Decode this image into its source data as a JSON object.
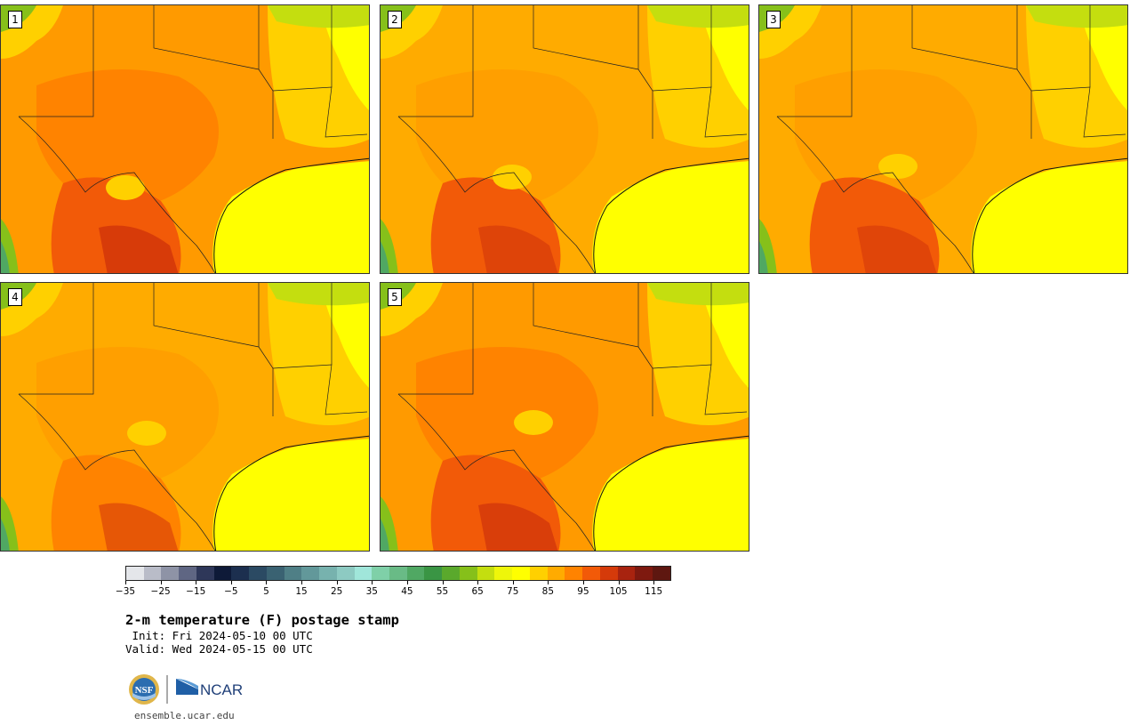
{
  "panels": [
    {
      "label": "1",
      "warmth": 0.95
    },
    {
      "label": "2",
      "warmth": 0.7
    },
    {
      "label": "3",
      "warmth": 0.65
    },
    {
      "label": "4",
      "warmth": 0.6
    },
    {
      "label": "5",
      "warmth": 0.85
    }
  ],
  "colorbar": {
    "colors": [
      "#e4e6ea",
      "#b9bcc8",
      "#8e93a6",
      "#5f6683",
      "#2e3759",
      "#0e1a38",
      "#1c2f4f",
      "#2b4a63",
      "#3a6272",
      "#4f7f86",
      "#62989a",
      "#77b2ae",
      "#8dcac2",
      "#a0e6da",
      "#7fd0a8",
      "#69bb86",
      "#50a863",
      "#3a9544",
      "#5aa92c",
      "#86c01a",
      "#c4de0f",
      "#eef60a",
      "#ffff00",
      "#ffd000",
      "#ffab00",
      "#ff8300",
      "#f25a08",
      "#d53a0a",
      "#a8230f",
      "#7e190f",
      "#5e1710"
    ],
    "tick_labels": [
      "−35",
      "−25",
      "−15",
      "−5",
      "5",
      "15",
      "25",
      "35",
      "45",
      "55",
      "65",
      "75",
      "85",
      "95",
      "105",
      "115"
    ]
  },
  "title": "2-m temperature (F) postage stamp",
  "init": " Init: Fri 2024-05-10 00 UTC",
  "valid": "Valid: Wed 2024-05-15 00 UTC",
  "logos": {
    "nsf": "NSF",
    "ncar": "NCAR"
  },
  "site": "ensemble.ucar.edu"
}
